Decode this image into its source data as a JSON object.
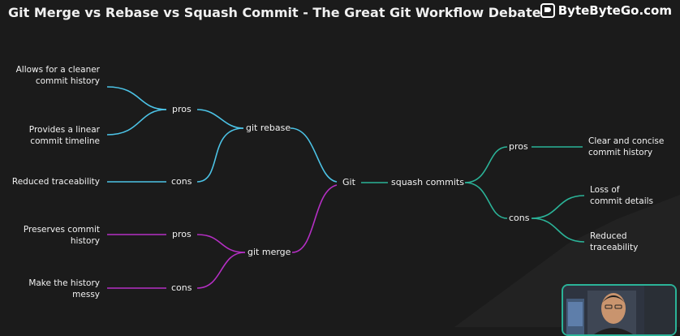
{
  "header": {
    "title": "Git Merge vs Rebase vs Squash Commit - The Great Git Workflow Debate",
    "brand": "ByteByteGo.com"
  },
  "diagram": {
    "root": "Git",
    "rebase": {
      "label": "git rebase",
      "pros_label": "pros",
      "cons_label": "cons",
      "pros": [
        "Allows for a cleaner\ncommit history",
        "Provides a linear\ncommit timeline"
      ],
      "cons": [
        "Reduced traceability"
      ]
    },
    "merge": {
      "label": "git merge",
      "pros_label": "pros",
      "cons_label": "cons",
      "pros": [
        "Preserves commit\nhistory"
      ],
      "cons": [
        "Make the history\nmessy"
      ]
    },
    "squash": {
      "label": "squash commits",
      "pros_label": "pros",
      "cons_label": "cons",
      "pros": [
        "Clear and concise\ncommit history"
      ],
      "cons": [
        "Loss of\ncommit details",
        "Reduced\ntraceability"
      ]
    }
  },
  "colors": {
    "rebase": "#4cc3e6",
    "merge": "#b52fc4",
    "squash": "#2bb398",
    "background": "#1b1b1b"
  },
  "icons": {
    "brand": "bytebytego-logo-icon"
  }
}
